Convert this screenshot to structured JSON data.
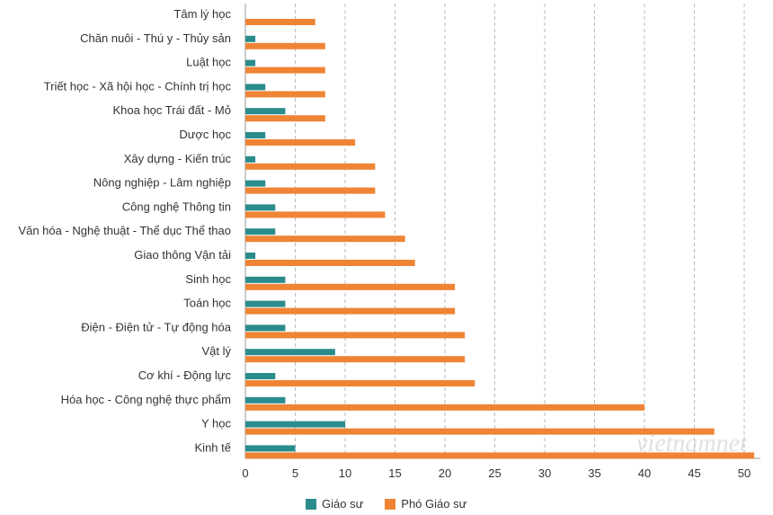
{
  "colors": {
    "series1": "#2a8c8c",
    "series2": "#ef8434",
    "grid": "#bbbbbb"
  },
  "watermark": "vietnamnet",
  "chart_data": {
    "type": "bar",
    "orientation": "horizontal",
    "title": "",
    "xlabel": "",
    "ylabel": "",
    "xlim": [
      0,
      51
    ],
    "ticks": [
      "0",
      "5",
      "10",
      "15",
      "20",
      "25",
      "30",
      "35",
      "40",
      "45",
      "50"
    ],
    "categories": [
      "Tâm lý học",
      "Chăn nuôi - Thú y - Thủy sản",
      "Luật học",
      "Triết học - Xã hội học - Chính trị học",
      "Khoa học Trái đất - Mỏ",
      "Dược học",
      "Xây dựng - Kiến trúc",
      "Nông nghiệp - Lâm nghiệp",
      "Công nghệ Thông tin",
      "Văn hóa - Nghệ thuật - Thể dục Thể thao",
      "Giao thông Vận tải",
      "Sinh học",
      "Toán học",
      "Điện - Điện tử - Tự động hóa",
      "Vật lý",
      "Cơ khí - Động lực",
      "Hóa học - Công nghệ thực phẩm",
      "Y học",
      "Kinh tế"
    ],
    "series": [
      {
        "name": "Giáo sư",
        "values": [
          0,
          1,
          1,
          2,
          4,
          2,
          1,
          2,
          3,
          3,
          1,
          4,
          4,
          4,
          9,
          3,
          4,
          10,
          5
        ]
      },
      {
        "name": "Phó Giáo sư",
        "values": [
          7,
          8,
          8,
          8,
          8,
          11,
          13,
          13,
          14,
          16,
          17,
          21,
          21,
          22,
          22,
          23,
          40,
          47,
          51
        ]
      }
    ],
    "legend": "bottom-center",
    "grid": "vertical-dashed"
  }
}
